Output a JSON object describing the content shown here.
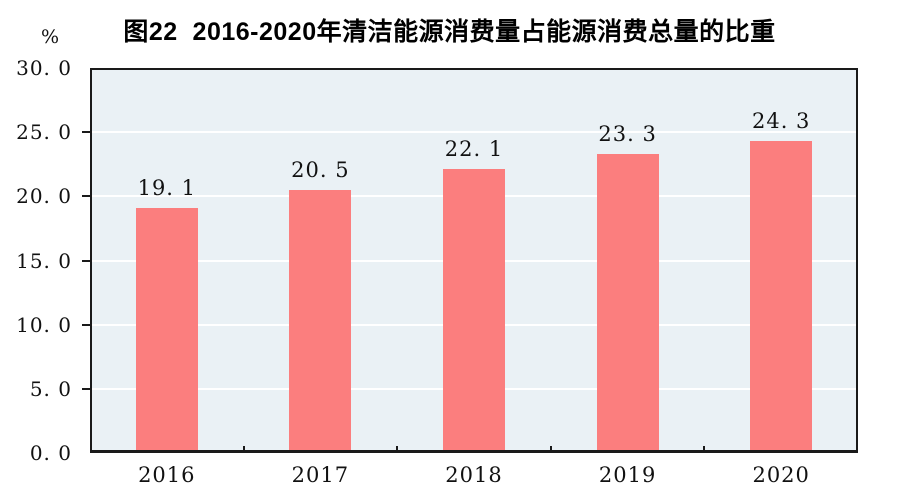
{
  "chart_data": {
    "type": "bar",
    "title": "图22  2016-2020年清洁能源消费量占能源消费总量的比重",
    "xlabel": "",
    "ylabel": "%",
    "categories": [
      "2016",
      "2017",
      "2018",
      "2019",
      "2020"
    ],
    "values": [
      19.1,
      20.5,
      22.1,
      23.3,
      24.3
    ],
    "ylim": [
      0,
      30
    ],
    "ytick_step": 5,
    "ytick_labels": [
      "0.0",
      "5.0",
      "10.0",
      "15.0",
      "20.0",
      "25.0",
      "30.0"
    ],
    "grid": true,
    "legend_position": "none",
    "colors": {
      "bar_fill": "#FB7E7E",
      "plot_background": "#EAF1F5",
      "gridline": "#FFFFFF",
      "axis": "#1A1A1A",
      "text": "#111111"
    }
  }
}
